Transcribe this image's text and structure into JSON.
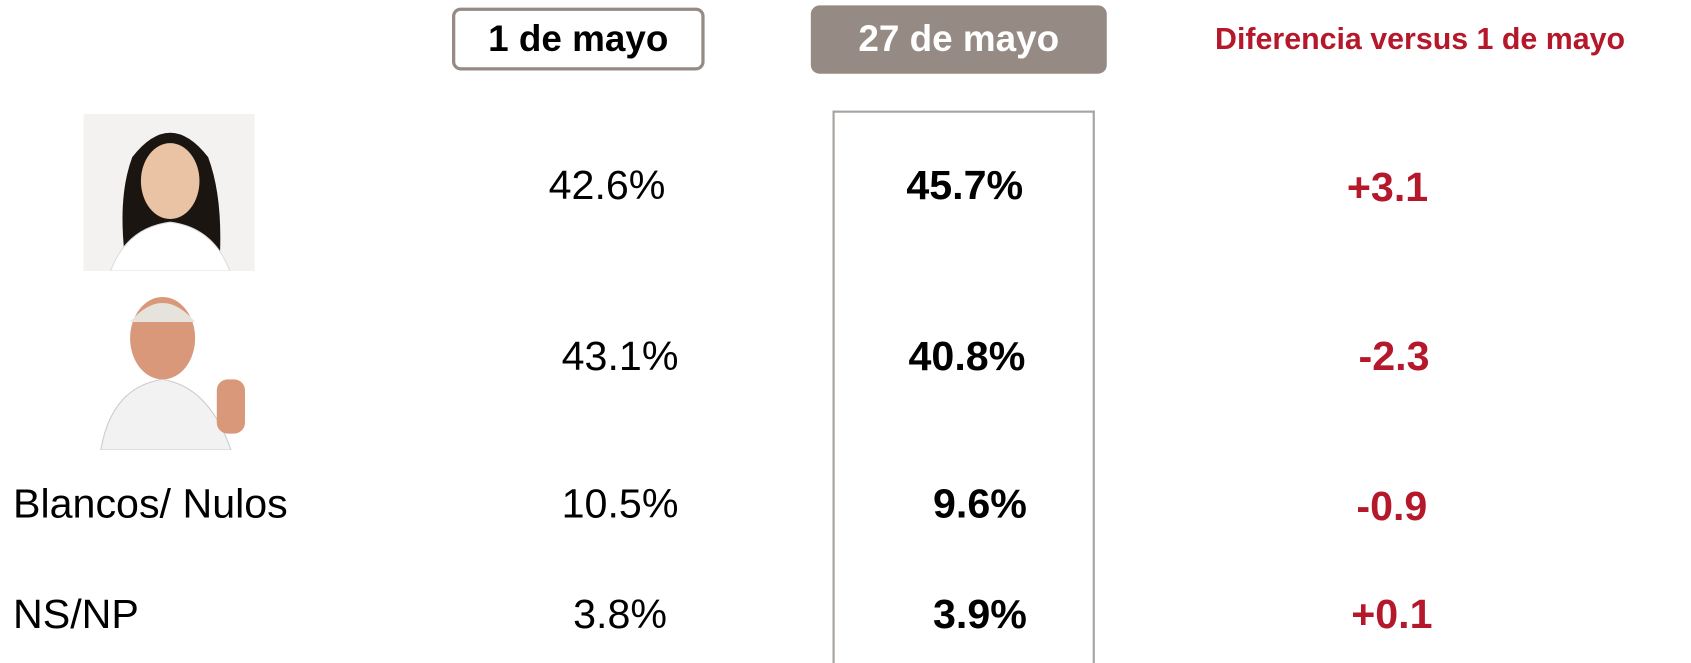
{
  "header": {
    "col1": "1 de mayo",
    "col2": "27 de mayo",
    "col3": "Diferencia versus 1 de mayo"
  },
  "table": {
    "rows": [
      {
        "may1": "42.6%",
        "may27": "45.7%",
        "diff": "+3.1"
      },
      {
        "may1": "43.1%",
        "may27": "40.8%",
        "diff": "-2.3"
      },
      {
        "label": "Blancos/ Nulos",
        "may1": "10.5%",
        "may27": "9.6%",
        "diff": "-0.9"
      },
      {
        "label": "NS/NP",
        "may1": "3.8%",
        "may27": "3.9%",
        "diff": "+0.1"
      }
    ]
  }
}
